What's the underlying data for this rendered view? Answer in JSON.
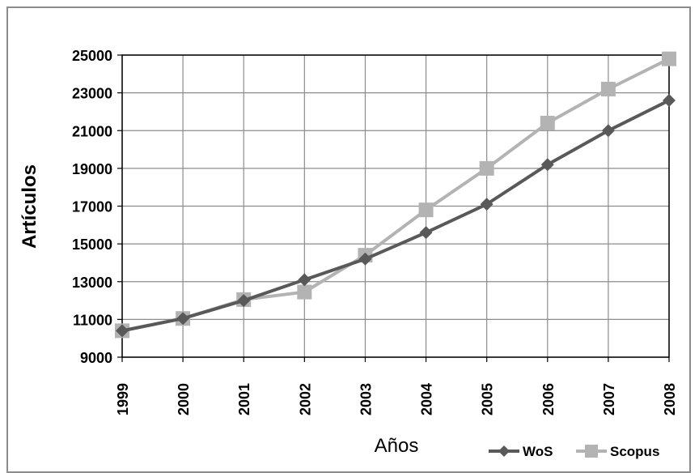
{
  "chart_data": {
    "type": "line",
    "title": "",
    "xlabel": "Años",
    "ylabel": "Artículos",
    "categories": [
      "1999",
      "2000",
      "2001",
      "2002",
      "2003",
      "2004",
      "2005",
      "2006",
      "2007",
      "2008"
    ],
    "ylim": [
      9000,
      25000
    ],
    "yticks": [
      9000,
      11000,
      13000,
      15000,
      17000,
      19000,
      21000,
      23000,
      25000
    ],
    "grid": true,
    "legend_position": "bottom-right",
    "series": [
      {
        "name": "WoS",
        "marker": "diamond",
        "color": "#595959",
        "values": [
          10400,
          11050,
          12000,
          13100,
          14200,
          15600,
          17100,
          19200,
          21000,
          22600
        ]
      },
      {
        "name": "Scopus",
        "marker": "square",
        "color": "#b3b3b3",
        "values": [
          10400,
          11050,
          12050,
          12450,
          14400,
          16800,
          19000,
          21400,
          23200,
          24800
        ]
      }
    ]
  }
}
